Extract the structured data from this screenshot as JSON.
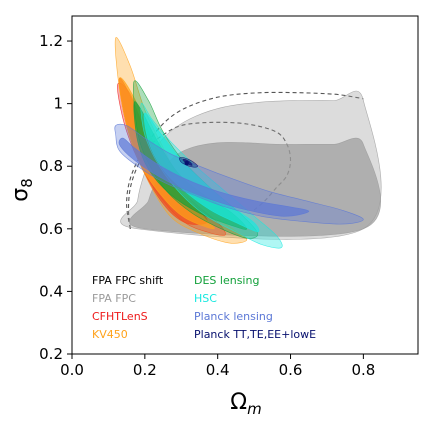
{
  "chart_data": {
    "type": "contour",
    "xlabel": "Ω",
    "xlabel_sub": "m",
    "ylabel": "σ",
    "ylabel_sub": "8",
    "xlim": [
      0.0,
      0.95
    ],
    "ylim": [
      0.2,
      1.28
    ],
    "xticks": [
      "0.0",
      "0.2",
      "0.4",
      "0.6",
      "0.8"
    ],
    "yticks": [
      "0.2",
      "0.4",
      "0.6",
      "0.8",
      "1",
      "1.2"
    ],
    "grid": false,
    "legend_placement": "lower-left",
    "best_fit_point": {
      "x": 0.315,
      "y": 0.81
    },
    "series": [
      {
        "name": "FPA FPC shift",
        "color": "#555555",
        "style": "dashed-outline",
        "contours": [
          [
            [
              0.16,
              0.6
            ],
            [
              0.155,
              0.66
            ],
            [
              0.16,
              0.73
            ],
            [
              0.18,
              0.8
            ],
            [
              0.21,
              0.86
            ],
            [
              0.25,
              0.9
            ],
            [
              0.3,
              0.93
            ],
            [
              0.38,
              0.94
            ],
            [
              0.48,
              0.935
            ],
            [
              0.56,
              0.91
            ],
            [
              0.59,
              0.87
            ],
            [
              0.6,
              0.82
            ],
            [
              0.59,
              0.77
            ],
            [
              0.56,
              0.73
            ],
            [
              0.53,
              0.69
            ],
            [
              0.5,
              0.66
            ]
          ],
          [
            [
              0.16,
              0.6
            ],
            [
              0.15,
              0.68
            ],
            [
              0.16,
              0.76
            ],
            [
              0.19,
              0.84
            ],
            [
              0.23,
              0.91
            ],
            [
              0.28,
              0.965
            ],
            [
              0.34,
              1.0
            ],
            [
              0.42,
              1.025
            ],
            [
              0.52,
              1.035
            ],
            [
              0.62,
              1.035
            ],
            [
              0.72,
              1.03
            ],
            [
              0.78,
              1.02
            ],
            [
              0.8,
              1.015
            ]
          ]
        ]
      },
      {
        "name": "FPA FPC",
        "color": "#9b9b9b",
        "style": "filled",
        "contours": [
          [
            [
              0.2,
              0.6
            ],
            [
              0.21,
              0.69
            ],
            [
              0.24,
              0.77
            ],
            [
              0.28,
              0.83
            ],
            [
              0.33,
              0.86
            ],
            [
              0.4,
              0.875
            ],
            [
              0.48,
              0.875
            ],
            [
              0.56,
              0.87
            ],
            [
              0.64,
              0.87
            ],
            [
              0.72,
              0.87
            ],
            [
              0.8,
              0.87
            ],
            [
              0.8,
              0.6
            ]
          ],
          [
            [
              0.18,
              0.6
            ],
            [
              0.18,
              0.69
            ],
            [
              0.2,
              0.78
            ],
            [
              0.23,
              0.86
            ],
            [
              0.28,
              0.92
            ],
            [
              0.34,
              0.96
            ],
            [
              0.42,
              0.99
            ],
            [
              0.52,
              1.005
            ],
            [
              0.62,
              1.01
            ],
            [
              0.72,
              1.01
            ],
            [
              0.8,
              1.01
            ],
            [
              0.8,
              0.6
            ]
          ]
        ]
      },
      {
        "name": "CFHTLenS",
        "color": "#ee1a1a",
        "style": "filled",
        "contours": [
          [
            [
              0.13,
              1.08
            ],
            [
              0.15,
              0.93
            ],
            [
              0.19,
              0.8
            ],
            [
              0.25,
              0.68
            ],
            [
              0.31,
              0.62
            ],
            [
              0.37,
              0.62
            ],
            [
              0.35,
              0.66
            ],
            [
              0.28,
              0.74
            ],
            [
              0.22,
              0.86
            ],
            [
              0.17,
              1.0
            ]
          ],
          [
            [
              0.125,
              1.06
            ],
            [
              0.145,
              0.93
            ],
            [
              0.19,
              0.8
            ],
            [
              0.25,
              0.69
            ],
            [
              0.31,
              0.62
            ],
            [
              0.37,
              0.59
            ],
            [
              0.42,
              0.58
            ],
            [
              0.4,
              0.62
            ],
            [
              0.32,
              0.7
            ],
            [
              0.25,
              0.8
            ],
            [
              0.2,
              0.91
            ],
            [
              0.16,
              1.03
            ]
          ]
        ]
      },
      {
        "name": "KV450",
        "color": "#ffa21a",
        "style": "filled",
        "contours": [
          [
            [
              0.13,
              1.08
            ],
            [
              0.15,
              0.93
            ],
            [
              0.19,
              0.8
            ],
            [
              0.25,
              0.7
            ],
            [
              0.31,
              0.635
            ],
            [
              0.39,
              0.6
            ],
            [
              0.36,
              0.64
            ],
            [
              0.3,
              0.73
            ],
            [
              0.23,
              0.86
            ],
            [
              0.17,
              1.02
            ]
          ],
          [
            [
              0.12,
              1.21
            ],
            [
              0.13,
              1.05
            ],
            [
              0.16,
              0.89
            ],
            [
              0.21,
              0.75
            ],
            [
              0.27,
              0.64
            ],
            [
              0.34,
              0.59
            ],
            [
              0.43,
              0.555
            ],
            [
              0.48,
              0.565
            ],
            [
              0.44,
              0.6
            ],
            [
              0.36,
              0.67
            ],
            [
              0.3,
              0.75
            ],
            [
              0.25,
              0.86
            ],
            [
              0.2,
              0.98
            ],
            [
              0.16,
              1.12
            ]
          ]
        ]
      },
      {
        "name": "DES lensing",
        "color": "#12a03a",
        "style": "filled",
        "contours": [
          [
            [
              0.17,
              1.0
            ],
            [
              0.18,
              0.88
            ],
            [
              0.21,
              0.79
            ],
            [
              0.27,
              0.71
            ],
            [
              0.35,
              0.65
            ],
            [
              0.44,
              0.61
            ],
            [
              0.48,
              0.6
            ],
            [
              0.44,
              0.65
            ],
            [
              0.36,
              0.71
            ],
            [
              0.29,
              0.78
            ],
            [
              0.23,
              0.89
            ],
            [
              0.19,
              0.98
            ]
          ],
          [
            [
              0.17,
              1.07
            ],
            [
              0.18,
              0.91
            ],
            [
              0.21,
              0.81
            ],
            [
              0.26,
              0.72
            ],
            [
              0.33,
              0.65
            ],
            [
              0.41,
              0.6
            ],
            [
              0.48,
              0.57
            ],
            [
              0.51,
              0.585
            ],
            [
              0.47,
              0.64
            ],
            [
              0.39,
              0.72
            ],
            [
              0.31,
              0.81
            ],
            [
              0.25,
              0.91
            ],
            [
              0.21,
              1.01
            ]
          ]
        ]
      },
      {
        "name": "HSC",
        "color": "#19e8e0",
        "style": "filled",
        "contours": [
          [
            [
              0.2,
              0.97
            ],
            [
              0.21,
              0.88
            ],
            [
              0.25,
              0.79
            ],
            [
              0.31,
              0.72
            ],
            [
              0.38,
              0.66
            ],
            [
              0.45,
              0.62
            ],
            [
              0.51,
              0.59
            ],
            [
              0.5,
              0.62
            ],
            [
              0.44,
              0.67
            ],
            [
              0.37,
              0.74
            ],
            [
              0.3,
              0.82
            ],
            [
              0.24,
              0.91
            ]
          ],
          [
            [
              0.19,
              1.0
            ],
            [
              0.2,
              0.9
            ],
            [
              0.24,
              0.8
            ],
            [
              0.3,
              0.71
            ],
            [
              0.37,
              0.64
            ],
            [
              0.45,
              0.59
            ],
            [
              0.52,
              0.55
            ],
            [
              0.575,
              0.54
            ],
            [
              0.56,
              0.58
            ],
            [
              0.49,
              0.65
            ],
            [
              0.42,
              0.72
            ],
            [
              0.34,
              0.8
            ],
            [
              0.27,
              0.88
            ],
            [
              0.22,
              0.95
            ]
          ]
        ]
      },
      {
        "name": "Planck lensing",
        "color": "#5c78d6",
        "style": "filled",
        "contours": [
          [
            [
              0.14,
              0.89
            ],
            [
              0.17,
              0.86
            ],
            [
              0.23,
              0.81
            ],
            [
              0.31,
              0.76
            ],
            [
              0.4,
              0.72
            ],
            [
              0.5,
              0.69
            ],
            [
              0.6,
              0.67
            ],
            [
              0.65,
              0.655
            ],
            [
              0.58,
              0.64
            ],
            [
              0.48,
              0.66
            ],
            [
              0.39,
              0.69
            ],
            [
              0.3,
              0.73
            ],
            [
              0.22,
              0.78
            ],
            [
              0.16,
              0.83
            ],
            [
              0.13,
              0.87
            ]
          ],
          [
            [
              0.12,
              0.9
            ],
            [
              0.12,
              0.93
            ],
            [
              0.15,
              0.93
            ],
            [
              0.2,
              0.89
            ],
            [
              0.27,
              0.84
            ],
            [
              0.35,
              0.8
            ],
            [
              0.44,
              0.76
            ],
            [
              0.54,
              0.72
            ],
            [
              0.64,
              0.69
            ],
            [
              0.74,
              0.66
            ],
            [
              0.8,
              0.63
            ],
            [
              0.74,
              0.615
            ],
            [
              0.62,
              0.625
            ],
            [
              0.52,
              0.64
            ],
            [
              0.42,
              0.67
            ],
            [
              0.33,
              0.71
            ],
            [
              0.25,
              0.75
            ],
            [
              0.18,
              0.8
            ],
            [
              0.13,
              0.85
            ]
          ]
        ]
      },
      {
        "name": "Planck TT,TE,EE+lowE",
        "color": "#07106e",
        "style": "filled",
        "contours": [
          [
            [
              0.305,
              0.822
            ],
            [
              0.31,
              0.813
            ],
            [
              0.32,
              0.806
            ],
            [
              0.33,
              0.803
            ],
            [
              0.325,
              0.812
            ],
            [
              0.315,
              0.82
            ]
          ],
          [
            [
              0.295,
              0.826
            ],
            [
              0.3,
              0.813
            ],
            [
              0.315,
              0.803
            ],
            [
              0.335,
              0.797
            ],
            [
              0.345,
              0.8
            ],
            [
              0.335,
              0.812
            ],
            [
              0.32,
              0.822
            ],
            [
              0.305,
              0.828
            ]
          ]
        ]
      }
    ]
  }
}
